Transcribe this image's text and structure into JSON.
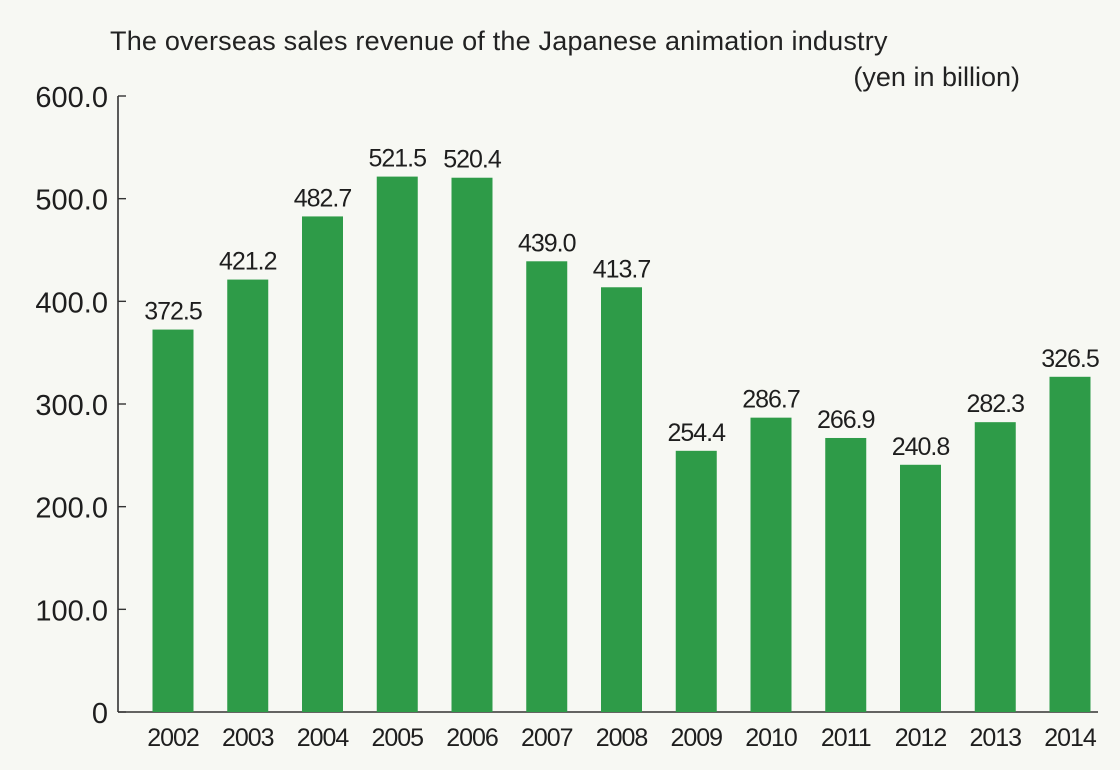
{
  "chart_data": {
    "type": "bar",
    "title": "The overseas sales revenue of the Japanese animation industry",
    "unit_label": "(yen in billion)",
    "categories": [
      "2002",
      "2003",
      "2004",
      "2005",
      "2006",
      "2007",
      "2008",
      "2009",
      "2010",
      "2011",
      "2012",
      "2013",
      "2014"
    ],
    "values": [
      372.5,
      421.2,
      482.7,
      521.5,
      520.4,
      439.0,
      413.7,
      254.4,
      286.7,
      266.9,
      240.8,
      282.3,
      326.5
    ],
    "value_labels": [
      "372.5",
      "421.2",
      "482.7",
      "521.5",
      "520.4",
      "439.0",
      "413.7",
      "254.4",
      "286.7",
      "266.9",
      "240.8",
      "282.3",
      "326.5"
    ],
    "yticks": [
      "0",
      "100.0",
      "200.0",
      "300.0",
      "400.0",
      "500.0",
      "600.0"
    ],
    "ytick_values": [
      0,
      100,
      200,
      300,
      400,
      500,
      600
    ],
    "ylim": [
      0,
      600
    ],
    "grid": false,
    "legend": "none",
    "bar_color": "#2e9b48"
  }
}
